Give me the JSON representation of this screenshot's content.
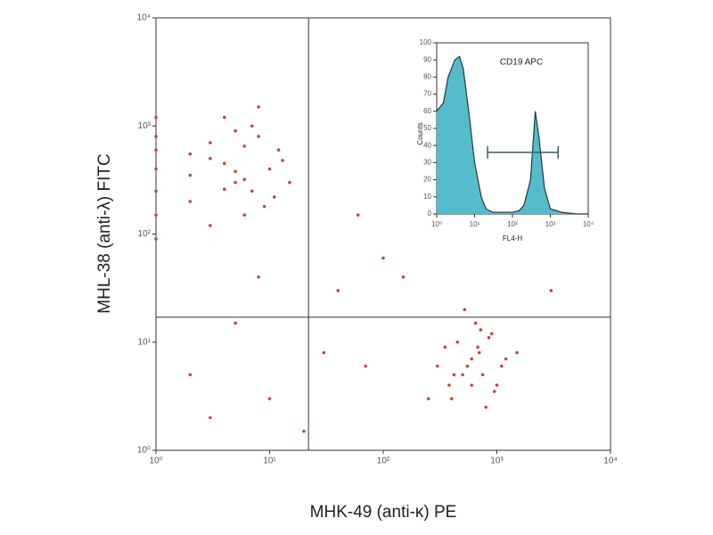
{
  "chart_data": [
    {
      "type": "scatter",
      "x_label": "MHK-49 (anti-κ) PE",
      "y_label": "MHL-38 (anti-λ) FITC",
      "log_x": true,
      "log_y": true,
      "color": "#c4453c",
      "xlim": [
        1,
        10000
      ],
      "ylim": [
        1,
        10000
      ],
      "xticks": [
        {
          "value": 1,
          "label": "10⁰"
        },
        {
          "value": 10,
          "label": "10¹"
        },
        {
          "value": 100,
          "label": "10²"
        },
        {
          "value": 1000,
          "label": "10³"
        },
        {
          "value": 10000,
          "label": "10⁴"
        }
      ],
      "yticks": [
        {
          "value": 1,
          "label": "10⁰"
        },
        {
          "value": 10,
          "label": "10¹"
        },
        {
          "value": 100,
          "label": "10²"
        },
        {
          "value": 1000,
          "label": "10³"
        },
        {
          "value": 10000,
          "label": "10⁴"
        }
      ],
      "quadrant": {
        "x": 22,
        "y": 17
      },
      "x": [
        3,
        5,
        8,
        2,
        4,
        6,
        10,
        3,
        7,
        12,
        2,
        5,
        9,
        4,
        6,
        15,
        3,
        8,
        2,
        11,
        5,
        7,
        4,
        13,
        6,
        500,
        700,
        400,
        900,
        600,
        300,
        1200,
        800,
        450,
        550,
        1000,
        650,
        350,
        750,
        1500,
        250,
        850,
        600,
        420,
        950,
        520,
        680,
        1100,
        380,
        720,
        1,
        1,
        1,
        1,
        1,
        1,
        1,
        2,
        10,
        30,
        60,
        100,
        5,
        3,
        40,
        150,
        20,
        1500,
        3000,
        70,
        8
      ],
      "values": [
        500,
        300,
        800,
        200,
        1200,
        150,
        400,
        700,
        250,
        600,
        350,
        900,
        180,
        450,
        650,
        300,
        120,
        1500,
        550,
        220,
        380,
        1000,
        260,
        480,
        320,
        5,
        8,
        3,
        12,
        4,
        6,
        7,
        2.5,
        10,
        6,
        4,
        15,
        9,
        5,
        8,
        3,
        11,
        7,
        5,
        3.5,
        20,
        9,
        6,
        4,
        13,
        150,
        400,
        800,
        250,
        1200,
        90,
        600,
        5,
        3,
        8,
        150,
        60,
        15,
        2,
        30,
        40,
        1.5,
        100,
        30,
        6,
        40
      ]
    },
    {
      "type": "histogram-line",
      "title": "CD19 APC",
      "x_label": "FL4-H",
      "y_label": "Counts",
      "log_x": true,
      "color": "#55bccb",
      "line_color": "#1d3b44",
      "xlim": [
        1,
        10000
      ],
      "ylim": [
        0,
        100
      ],
      "xticks": [
        {
          "value": 1,
          "label": "10⁰"
        },
        {
          "value": 10,
          "label": "10¹"
        },
        {
          "value": 100,
          "label": "10²"
        },
        {
          "value": 1000,
          "label": "10³"
        },
        {
          "value": 10000,
          "label": "10⁴"
        }
      ],
      "yticks": [
        0,
        10,
        20,
        30,
        40,
        50,
        60,
        70,
        80,
        90,
        100
      ],
      "gate": {
        "x": [
          22,
          1600
        ],
        "y": 36
      },
      "x": [
        1,
        1.5,
        2,
        3,
        4,
        5,
        7,
        10,
        15,
        20,
        30,
        50,
        100,
        150,
        200,
        300,
        400,
        500,
        700,
        1000,
        2000,
        5000,
        10000
      ],
      "values": [
        60,
        65,
        80,
        90,
        92,
        85,
        60,
        30,
        10,
        3,
        1,
        1,
        1,
        2,
        5,
        20,
        60,
        45,
        15,
        3,
        1,
        0,
        0
      ]
    }
  ]
}
